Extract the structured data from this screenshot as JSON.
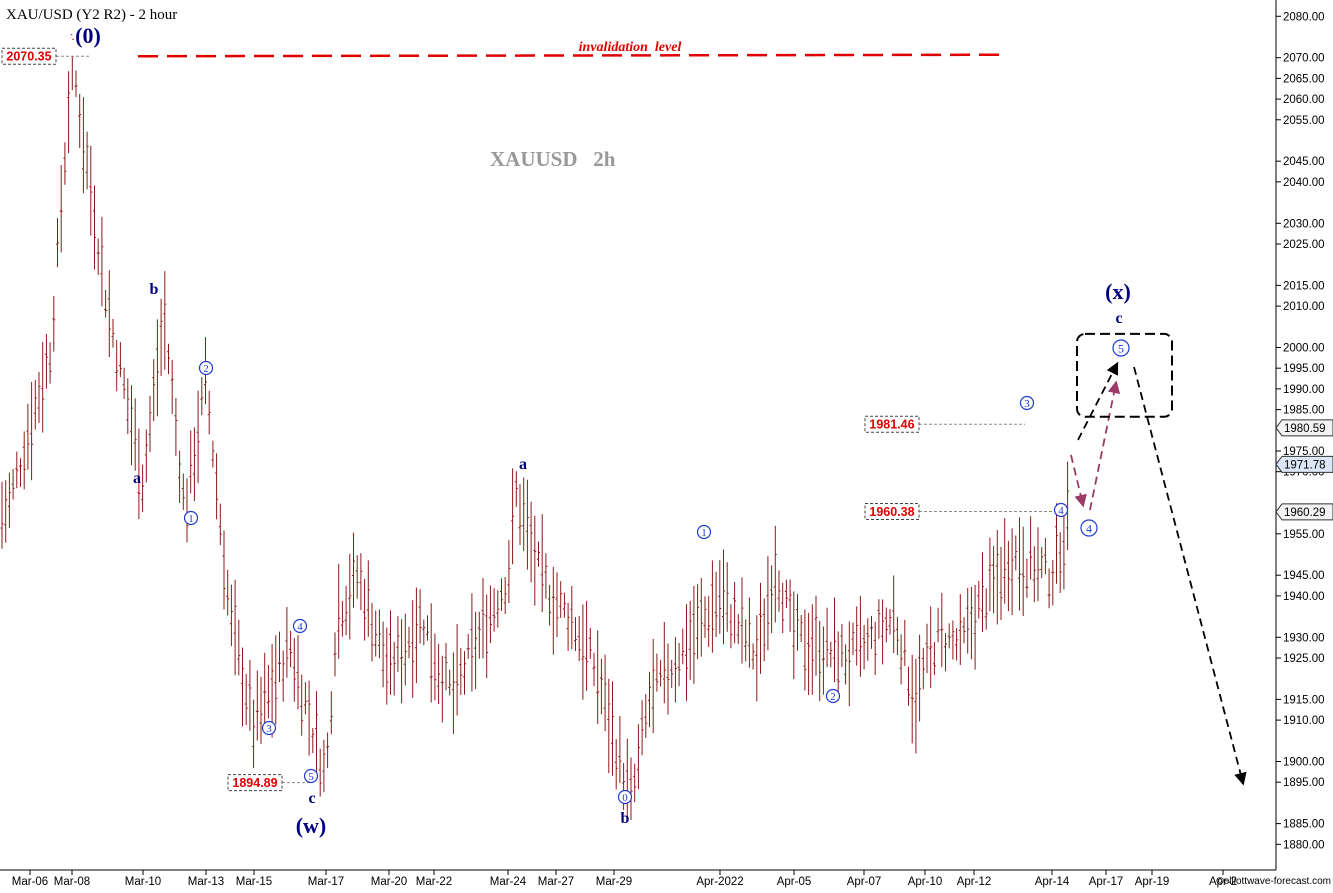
{
  "chart_data": {
    "type": "bar",
    "title": "XAU/USD (Y2 R2) - 2 hour",
    "watermark": "XAUUSD   2h",
    "copyright": "©elliottwave-forecast.com",
    "colors": {
      "bar": "#8b1a1a",
      "label": "#000080",
      "wave": "#1f3bd1",
      "red": "#e00000",
      "path": "#9b3a66"
    },
    "x_axis": {
      "ticks": [
        "Mar-06",
        "Mar-08",
        "Mar-10",
        "Mar-13",
        "Mar-15",
        "Mar-17",
        "Mar-20",
        "Mar-22",
        "Mar-24",
        "Mar-27",
        "Mar-29",
        "Apr-2022",
        "Apr-05",
        "Apr-07",
        "Apr-10",
        "Apr-12",
        "Apr-14",
        "Apr-17",
        "Apr-19",
        "Apr-2"
      ]
    },
    "y_axis": {
      "range": [
        1875,
        2082
      ],
      "ticks": [
        1880.0,
        1885.0,
        1895.0,
        1900.0,
        1910.0,
        1915.0,
        1925.0,
        1930.0,
        1940.0,
        1945.0,
        1955.0,
        1960.0,
        1970.0,
        1975.0,
        1985.0,
        1990.0,
        1995.0,
        2000.0,
        2010.0,
        2015.0,
        2025.0,
        2030.0,
        2040.0,
        2045.0,
        2055.0,
        2060.0,
        2065.0,
        2070.0,
        2080.0
      ]
    },
    "price_tags": [
      {
        "value": 1980.59,
        "label": "1980.59"
      },
      {
        "value": 1971.78,
        "label": "1971.78",
        "highlight": true
      },
      {
        "value": 1960.29,
        "label": "1960.29"
      }
    ],
    "level_labels": [
      {
        "value": 2070.35,
        "label": "2070.35",
        "x": "Mar-06"
      },
      {
        "value": 1894.89,
        "label": "1894.89",
        "x": "Mar-15"
      },
      {
        "value": 1981.46,
        "label": "1981.46",
        "x": "Apr-10"
      },
      {
        "value": 1960.38,
        "label": "1960.38",
        "x": "Apr-10"
      }
    ],
    "invalidation": {
      "value": 2070.35,
      "label": "invalidation  level"
    },
    "waves": [
      {
        "label": "(0)",
        "date": "Mar-08",
        "value": 2070.35,
        "style": "major"
      },
      {
        "label": "a",
        "date": "Mar-10",
        "value": 1967,
        "style": "minor"
      },
      {
        "label": "b",
        "date": "Mar-10",
        "value": 2010,
        "style": "minor"
      },
      {
        "label": "1",
        "date": "Mar-12",
        "value": 1955,
        "style": "circled"
      },
      {
        "label": "2",
        "date": "Mar-13",
        "value": 1993,
        "style": "circled"
      },
      {
        "label": "3",
        "date": "Mar-15",
        "value": 1908,
        "style": "circled"
      },
      {
        "label": "4",
        "date": "Mar-16",
        "value": 1930,
        "style": "circled"
      },
      {
        "label": "5",
        "date": "Mar-16",
        "value": 1894.89,
        "style": "circled"
      },
      {
        "label": "c",
        "date": "Mar-16",
        "value": 1894.89,
        "style": "minor"
      },
      {
        "label": "(w)",
        "date": "Mar-16",
        "value": 1894.89,
        "style": "major"
      },
      {
        "label": "a",
        "date": "Mar-24",
        "value": 1968,
        "style": "minor"
      },
      {
        "label": "0",
        "date": "Mar-29",
        "value": 1889,
        "style": "circled"
      },
      {
        "label": "b",
        "date": "Mar-29",
        "value": 1889,
        "style": "minor"
      },
      {
        "label": "1",
        "date": "Apr-01",
        "value": 1950,
        "style": "circled"
      },
      {
        "label": "2",
        "date": "Apr-06",
        "value": 1914,
        "style": "circled"
      },
      {
        "label": "3",
        "date": "Apr-13",
        "value": 1981.46,
        "style": "circled"
      },
      {
        "label": "4",
        "date": "Apr-14",
        "value": 1960.38,
        "style": "circled"
      },
      {
        "label": "4",
        "date": "Apr-15",
        "value": 1955,
        "style": "circled"
      },
      {
        "label": "5",
        "date": "Apr-17",
        "value": 1998,
        "style": "circled"
      },
      {
        "label": "c",
        "date": "Apr-17",
        "value": 2003,
        "style": "minor"
      },
      {
        "label": "(x)",
        "date": "Apr-17",
        "value": 2010,
        "style": "major"
      }
    ],
    "target_box": {
      "x_from": "Apr-16",
      "x_to": "Apr-19",
      "y_from": 1984,
      "y_to": 2004,
      "style": "dashed"
    },
    "projections": [
      {
        "from": [
          "Apr-15",
          1975
        ],
        "to": [
          "Apr-17",
          1995
        ],
        "color": "black"
      },
      {
        "from": [
          "Apr-15",
          1972
        ],
        "to": [
          "Apr-15",
          1957
        ],
        "color": "path"
      },
      {
        "from": [
          "Apr-15",
          1957
        ],
        "to": [
          "Apr-16",
          1988
        ],
        "color": "path"
      },
      {
        "from": [
          "Apr-17",
          1995
        ],
        "to": [
          "Apr-20",
          1890
        ],
        "color": "black"
      }
    ],
    "grid": false,
    "legend": "none"
  }
}
